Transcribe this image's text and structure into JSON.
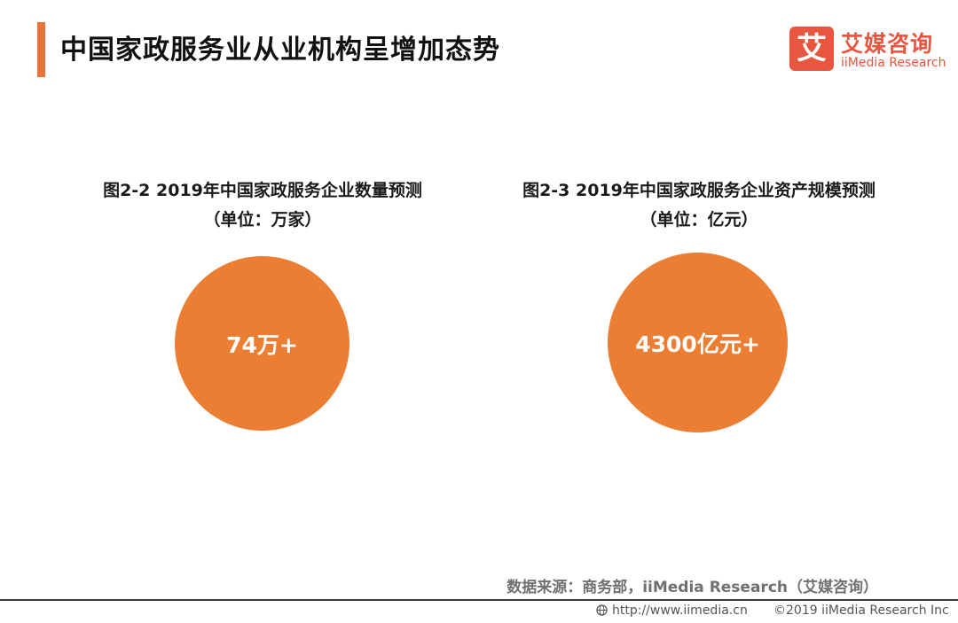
{
  "header": {
    "title": "中国家政服务业从业机构呈增加态势"
  },
  "logo": {
    "mark": "艾",
    "name_cn": "艾媒咨询",
    "name_en": "iiMedia Research"
  },
  "chart_data": [
    {
      "type": "bubble",
      "title": "图2-2 2019年中国家政服务企业数量预测",
      "unit": "（单位：万家）",
      "value_label": "74万+",
      "value": 74,
      "color": "#EB7E33"
    },
    {
      "type": "bubble",
      "title": "图2-3 2019年中国家政服务企业资产规模预测",
      "unit": "（单位：亿元）",
      "value_label": "4300亿元+",
      "value": 4300,
      "color": "#EB7E33"
    }
  ],
  "source": "数据来源：商务部，iiMedia Research（艾媒咨询）",
  "footer": {
    "url": "http://www.iimedia.cn",
    "copyright": "©2019  iiMedia Research  Inc"
  },
  "colors": {
    "accent": "#E8743B",
    "brand": "#E8563F",
    "bubble": "#EB7E33"
  }
}
